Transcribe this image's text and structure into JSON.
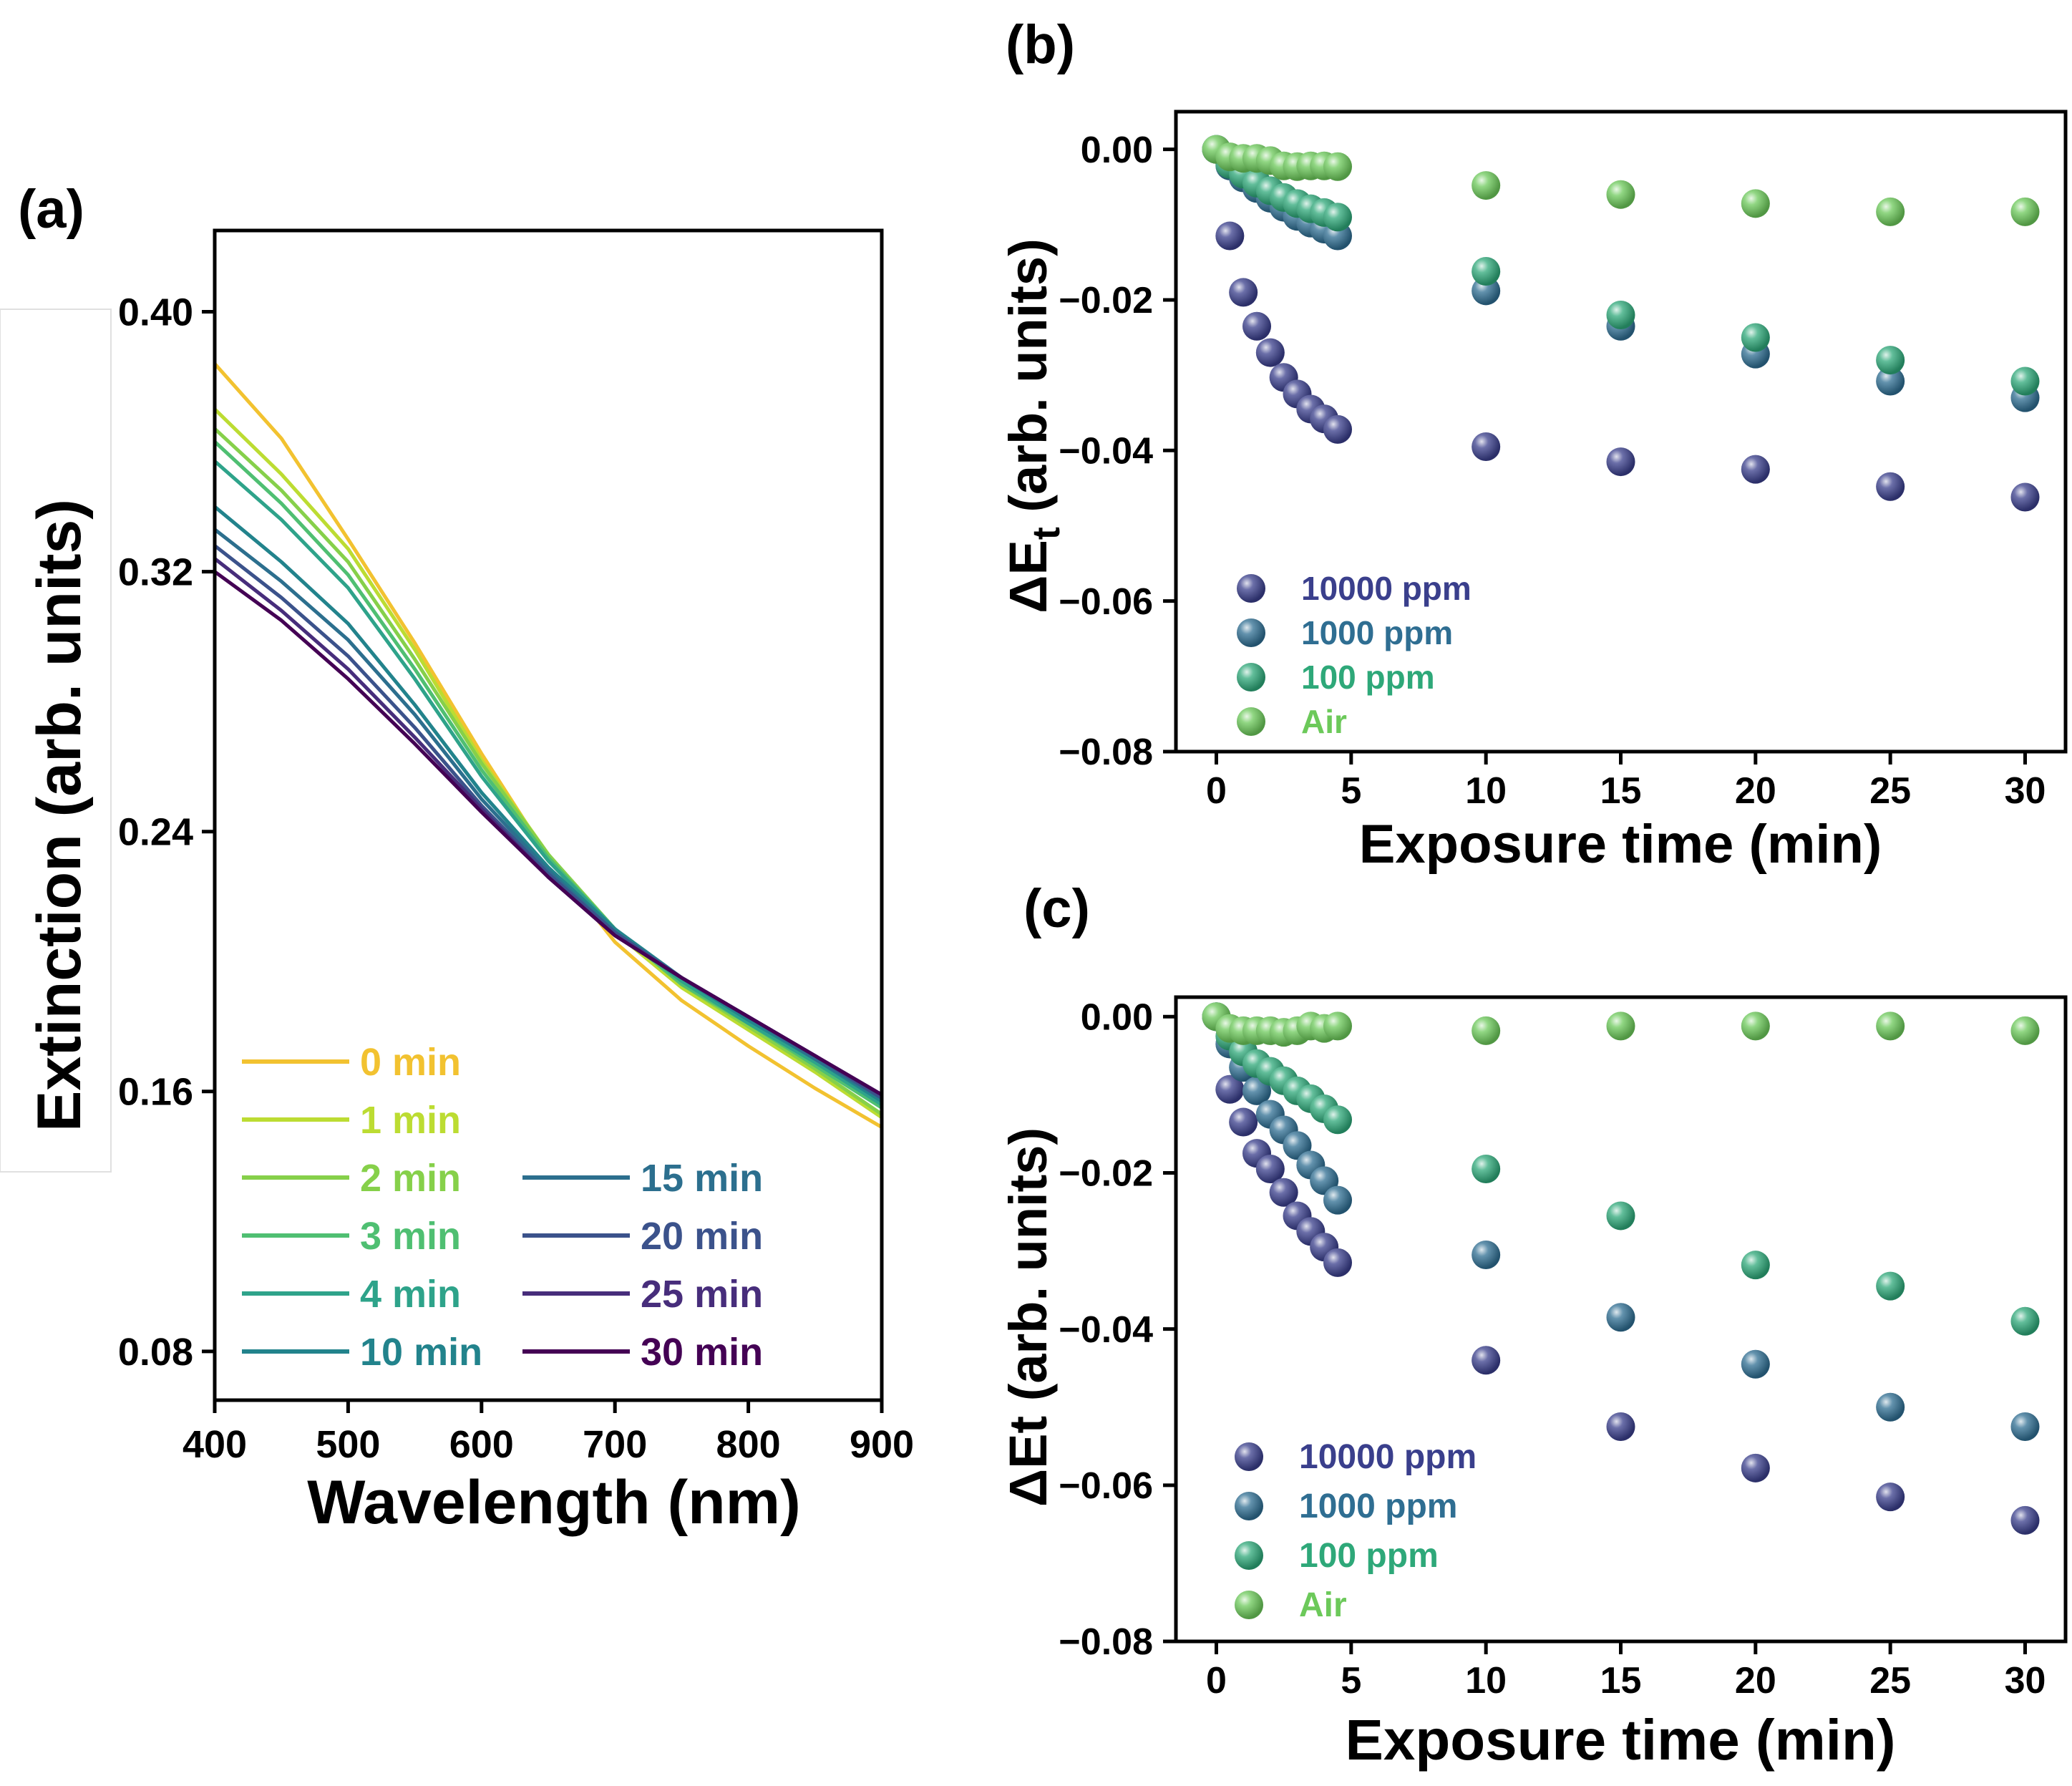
{
  "chart_data": [
    {
      "panel": "(a)",
      "type": "line",
      "xlabel": "Wavelength (nm)",
      "ylabel": "Extinction (arb. units)",
      "xlim": [
        400,
        900
      ],
      "ylim": [
        0.065,
        0.425
      ],
      "xticks": [
        400,
        500,
        600,
        700,
        800,
        900
      ],
      "xtick_labels": [
        "400",
        "500",
        "600",
        "700",
        "800",
        "900"
      ],
      "yticks": [
        0.08,
        0.16,
        0.24,
        0.32,
        0.4
      ],
      "ytick_labels": [
        "0.08",
        "0.16",
        "0.24",
        "0.32",
        "0.40"
      ],
      "x": [
        400,
        450,
        500,
        550,
        600,
        650,
        700,
        750,
        800,
        850,
        900
      ],
      "series": [
        {
          "name": "0 min",
          "color": "#f2c230",
          "values": [
            0.384,
            0.361,
            0.33,
            0.298,
            0.264,
            0.232,
            0.206,
            0.188,
            0.174,
            0.161,
            0.149
          ]
        },
        {
          "name": "1 min",
          "color": "#bcdc32",
          "values": [
            0.37,
            0.35,
            0.327,
            0.296,
            0.262,
            0.233,
            0.209,
            0.192,
            0.179,
            0.166,
            0.152
          ]
        },
        {
          "name": "2 min",
          "color": "#86d04a",
          "values": [
            0.364,
            0.345,
            0.323,
            0.293,
            0.261,
            0.233,
            0.21,
            0.193,
            0.18,
            0.167,
            0.153
          ]
        },
        {
          "name": "3 min",
          "color": "#4fbf72",
          "values": [
            0.36,
            0.341,
            0.319,
            0.29,
            0.259,
            0.232,
            0.21,
            0.193,
            0.181,
            0.168,
            0.155
          ]
        },
        {
          "name": "4 min",
          "color": "#2ea38a",
          "values": [
            0.354,
            0.336,
            0.315,
            0.287,
            0.257,
            0.231,
            0.21,
            0.194,
            0.181,
            0.169,
            0.156
          ]
        },
        {
          "name": "10 min",
          "color": "#22838c",
          "values": [
            0.34,
            0.323,
            0.304,
            0.279,
            0.252,
            0.229,
            0.21,
            0.195,
            0.182,
            0.17,
            0.157
          ]
        },
        {
          "name": "15 min",
          "color": "#2c6f8e",
          "values": [
            0.333,
            0.317,
            0.299,
            0.276,
            0.25,
            0.228,
            0.209,
            0.195,
            0.183,
            0.17,
            0.158
          ]
        },
        {
          "name": "20 min",
          "color": "#3b528b",
          "values": [
            0.328,
            0.312,
            0.294,
            0.272,
            0.248,
            0.227,
            0.209,
            0.195,
            0.183,
            0.171,
            0.158
          ]
        },
        {
          "name": "25 min",
          "color": "#472d7b",
          "values": [
            0.324,
            0.308,
            0.29,
            0.269,
            0.247,
            0.226,
            0.208,
            0.195,
            0.183,
            0.171,
            0.159
          ]
        },
        {
          "name": "30 min",
          "color": "#440154",
          "values": [
            0.32,
            0.305,
            0.287,
            0.267,
            0.246,
            0.226,
            0.208,
            0.195,
            0.183,
            0.171,
            0.159
          ]
        }
      ]
    },
    {
      "panel": "(b)",
      "type": "scatter",
      "xlabel": "Exposure time (min)",
      "ylabel": "ΔE",
      "ylabel_sub": "t",
      "ylabel_rest": " (arb. units)",
      "xlim": [
        -1.5,
        31.5
      ],
      "ylim": [
        -0.08,
        0.005
      ],
      "xticks": [
        0,
        5,
        10,
        15,
        20,
        25,
        30
      ],
      "xtick_labels": [
        "0",
        "5",
        "10",
        "15",
        "20",
        "25",
        "30"
      ],
      "yticks": [
        0.0,
        -0.02,
        -0.04,
        -0.06,
        -0.08
      ],
      "ytick_labels": [
        "0.00",
        "−0.02",
        "−0.04",
        "−0.06",
        "−0.08"
      ],
      "x": [
        0,
        0.5,
        1,
        1.5,
        2,
        2.5,
        3,
        3.5,
        4,
        4.5,
        10,
        15,
        20,
        25,
        30
      ],
      "series": [
        {
          "name": "10000 ppm",
          "color": "#3a3f8c",
          "values": [
            0.0,
            -0.0115,
            -0.019,
            -0.0235,
            -0.027,
            -0.0303,
            -0.0325,
            -0.0345,
            -0.0358,
            -0.0372,
            -0.0395,
            -0.0415,
            -0.0425,
            -0.0448,
            -0.0462
          ]
        },
        {
          "name": "1000 ppm",
          "color": "#2f6e92",
          "values": [
            0.0,
            -0.0022,
            -0.0038,
            -0.0052,
            -0.0065,
            -0.0077,
            -0.0089,
            -0.0098,
            -0.0106,
            -0.0115,
            -0.0188,
            -0.0235,
            -0.0272,
            -0.0308,
            -0.033
          ]
        },
        {
          "name": "100 ppm",
          "color": "#2ea879",
          "values": [
            0.0,
            -0.002,
            -0.0033,
            -0.0045,
            -0.0055,
            -0.0064,
            -0.0072,
            -0.0079,
            -0.0084,
            -0.009,
            -0.0162,
            -0.022,
            -0.025,
            -0.028,
            -0.0308
          ]
        },
        {
          "name": "Air",
          "color": "#6cc95a",
          "values": [
            0.0,
            -0.001,
            -0.0012,
            -0.0012,
            -0.0015,
            -0.0022,
            -0.0023,
            -0.0022,
            -0.0022,
            -0.0023,
            -0.0048,
            -0.006,
            -0.0072,
            -0.0083,
            -0.0083
          ]
        }
      ]
    },
    {
      "panel": "(c)",
      "type": "scatter",
      "xlabel": "Exposure time (min)",
      "ylabel": "ΔEt (arb. units)",
      "xlim": [
        -1.5,
        31.5
      ],
      "ylim": [
        -0.08,
        0.0025
      ],
      "xticks": [
        0,
        5,
        10,
        15,
        20,
        25,
        30
      ],
      "xtick_labels": [
        "0",
        "5",
        "10",
        "15",
        "20",
        "25",
        "30"
      ],
      "yticks": [
        0.0,
        -0.02,
        -0.04,
        -0.06,
        -0.08
      ],
      "ytick_labels": [
        "0.00",
        "−0.02",
        "−0.04",
        "−0.06",
        "−0.08"
      ],
      "x": [
        0,
        0.5,
        1,
        1.5,
        2,
        2.5,
        3,
        3.5,
        4,
        4.5,
        10,
        15,
        20,
        25,
        30
      ],
      "series": [
        {
          "name": "10000 ppm",
          "color": "#3a3f8c",
          "values": [
            0.0,
            -0.0093,
            -0.0135,
            -0.0175,
            -0.0195,
            -0.0225,
            -0.0255,
            -0.0275,
            -0.0295,
            -0.0315,
            -0.044,
            -0.0525,
            -0.0578,
            -0.0615,
            -0.0645
          ]
        },
        {
          "name": "1000 ppm",
          "color": "#2f6e92",
          "values": [
            0.0,
            -0.0035,
            -0.0065,
            -0.0095,
            -0.0125,
            -0.0145,
            -0.0165,
            -0.019,
            -0.021,
            -0.0235,
            -0.0305,
            -0.0385,
            -0.0445,
            -0.05,
            -0.0525
          ]
        },
        {
          "name": "100 ppm",
          "color": "#2ea879",
          "values": [
            0.0,
            -0.0025,
            -0.0045,
            -0.006,
            -0.007,
            -0.0082,
            -0.0095,
            -0.0105,
            -0.0118,
            -0.0132,
            -0.0195,
            -0.0255,
            -0.0318,
            -0.0345,
            -0.039
          ]
        },
        {
          "name": "Air",
          "color": "#6cc95a",
          "values": [
            0.0,
            -0.0015,
            -0.0018,
            -0.0018,
            -0.0018,
            -0.002,
            -0.0018,
            -0.0012,
            -0.0015,
            -0.0012,
            -0.0018,
            -0.0012,
            -0.0012,
            -0.0012,
            -0.0018
          ]
        }
      ]
    }
  ],
  "panels": {
    "a_label": "(a)",
    "b_label": "(b)",
    "c_label": "(c)"
  }
}
